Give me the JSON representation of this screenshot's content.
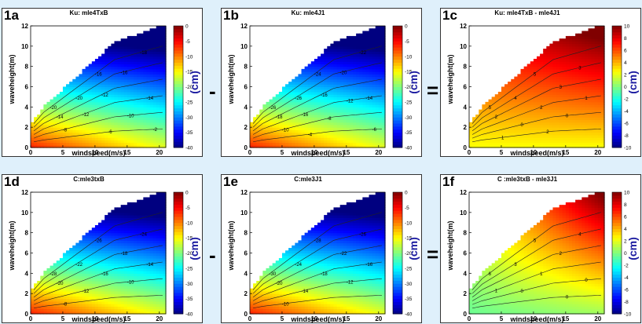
{
  "colors": {
    "background": "#dff0fb",
    "unit": "#1a1aa0"
  },
  "operators": {
    "minus": "-",
    "equals": "="
  },
  "chart_data": [
    {
      "type": "heatmap",
      "id": "1a",
      "title": "Ku: mle4TxB",
      "band": "Ku",
      "xlabel": "windspeed(m/s)",
      "ylabel": "waveheight(m)",
      "xlim": [
        0,
        21
      ],
      "ylim": [
        0,
        12
      ],
      "xticks": [
        0,
        5,
        10,
        15,
        20
      ],
      "yticks": [
        0,
        2,
        4,
        6,
        8,
        10,
        12
      ],
      "clim": [
        -40,
        0
      ],
      "cticks": [
        0,
        -5,
        -10,
        -15,
        -20,
        -25,
        -30,
        -35,
        -40
      ],
      "cunit": "(cm)",
      "colormap": "jet",
      "contour_labels": [
        "-20",
        "-16",
        "-18",
        "-20",
        "-16",
        "-14",
        "-12",
        "-14",
        "-12",
        "-10",
        "-8",
        "-6",
        "-2"
      ]
    },
    {
      "type": "heatmap",
      "id": "1b",
      "title": "Ku: mle4J1",
      "band": "Ku",
      "xlabel": "windspeed(m/s)",
      "ylabel": "waveheight(m)",
      "xlim": [
        0,
        21
      ],
      "ylim": [
        0,
        12
      ],
      "xticks": [
        0,
        5,
        10,
        15,
        20
      ],
      "yticks": [
        0,
        2,
        4,
        6,
        8,
        10,
        12
      ],
      "clim": [
        -40,
        0
      ],
      "cticks": [
        0,
        -5,
        -10,
        -15,
        -20,
        -25,
        -30,
        -35,
        -40
      ],
      "cunit": "(cm)",
      "colormap": "jet",
      "contour_labels": [
        "-26",
        "-24",
        "-22",
        "-26",
        "-20",
        "-18",
        "-16",
        "-14",
        "-16",
        "-12",
        "-10",
        "-8",
        "-6",
        "-4"
      ]
    },
    {
      "type": "heatmap",
      "id": "1c",
      "title": "Ku: mle4TxB - mle4J1",
      "band": "Ku",
      "xlabel": "windspeed(m/s)",
      "ylabel": "waveheight(m)",
      "xlim": [
        0,
        21
      ],
      "ylim": [
        0,
        12
      ],
      "xticks": [
        0,
        5,
        10,
        15,
        20
      ],
      "yticks": [
        0,
        2,
        4,
        6,
        8,
        10,
        12
      ],
      "clim": [
        -10,
        10
      ],
      "cticks": [
        10,
        8,
        6,
        4,
        2,
        0,
        -2,
        -4,
        -6,
        -8,
        -10
      ],
      "cunit": "(cm)",
      "colormap": "jet",
      "contour_labels": [
        "5",
        "5",
        "3",
        "4",
        "3",
        "2",
        "2",
        "1",
        "0",
        "0",
        "1",
        "2"
      ]
    },
    {
      "type": "heatmap",
      "id": "1d",
      "title": "C:mle3txB",
      "band": "C",
      "xlabel": "windspeed(m/s)",
      "ylabel": "waveheight(m)",
      "xlim": [
        0,
        21
      ],
      "ylim": [
        0,
        12
      ],
      "xticks": [
        0,
        5,
        10,
        15,
        20
      ],
      "yticks": [
        0,
        2,
        4,
        6,
        8,
        10,
        12
      ],
      "clim": [
        -40,
        0
      ],
      "cticks": [
        0,
        -5,
        -10,
        -15,
        -20,
        -25,
        -30,
        -35,
        -40
      ],
      "cunit": "(cm)",
      "colormap": "jet",
      "contour_labels": [
        "-28",
        "-26",
        "-24",
        "-22",
        "-18",
        "-20",
        "-16",
        "-14",
        "-12",
        "-10",
        "-8"
      ]
    },
    {
      "type": "heatmap",
      "id": "1e",
      "title": "C:mle3J1",
      "band": "C",
      "xlabel": "windspeed(m/s)",
      "ylabel": "waveheight(m)",
      "xlim": [
        0,
        21
      ],
      "ylim": [
        0,
        12
      ],
      "xticks": [
        0,
        5,
        10,
        15,
        20
      ],
      "yticks": [
        0,
        2,
        4,
        6,
        8,
        10,
        12
      ],
      "clim": [
        -40,
        0
      ],
      "cticks": [
        0,
        -5,
        -10,
        -15,
        -20,
        -25,
        -30,
        -35,
        -40
      ],
      "cunit": "(cm)",
      "colormap": "jet",
      "contour_labels": [
        "-30",
        "-28",
        "-26",
        "-24",
        "-22",
        "-20",
        "-18",
        "-16",
        "-14",
        "-12",
        "-10"
      ]
    },
    {
      "type": "heatmap",
      "id": "1f",
      "title": "C :mle3txB - mle3J1",
      "band": "C",
      "xlabel": "windspeed(m/s)",
      "ylabel": "waveheight(m)",
      "xlim": [
        0,
        21
      ],
      "ylim": [
        0,
        12
      ],
      "xticks": [
        0,
        5,
        10,
        15,
        20
      ],
      "yticks": [
        0,
        2,
        4,
        6,
        8,
        10,
        12
      ],
      "clim": [
        -10,
        10
      ],
      "cticks": [
        10,
        8,
        6,
        4,
        2,
        0,
        -2,
        -4,
        -6,
        -8,
        -10
      ],
      "cunit": "(cm)",
      "colormap": "jet",
      "contour_labels": [
        "6",
        "5",
        "4",
        "3",
        "2",
        "1",
        "1",
        "0",
        "0",
        "0"
      ]
    }
  ]
}
